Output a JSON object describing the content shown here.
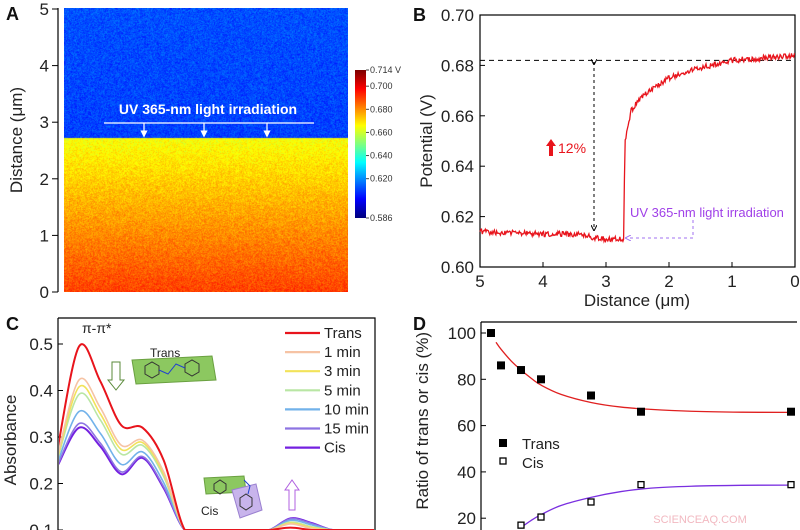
{
  "panels": {
    "a": "A",
    "b": "B",
    "c": "C",
    "d": "D"
  },
  "watermark": "SCIENCEAQ.COM",
  "chart_data": [
    {
      "panel": "A",
      "type": "heatmap",
      "ylabel": "Distance (μm)",
      "ylim": [
        0,
        5
      ],
      "yticks": [
        "0",
        "1",
        "2",
        "3",
        "4",
        "5"
      ],
      "annotation": "UV 365-nm light irradiation",
      "colormap": "jet",
      "colorbar": {
        "range": [
          0.586,
          0.714
        ],
        "ticks": [
          "0.714 V",
          "0.700",
          "0.680",
          "0.660",
          "0.640",
          "0.620",
          "0.586"
        ]
      },
      "regions": [
        {
          "y_range": [
            2.72,
            5
          ],
          "potential_V": [
            0.61,
            0.612
          ]
        },
        {
          "y_range": [
            0,
            2.72
          ],
          "potential_V": [
            0.69,
            0.665
          ]
        }
      ]
    },
    {
      "panel": "B",
      "type": "line",
      "xlabel": "Distance (μm)",
      "ylabel": "Potential (V)",
      "xlim": [
        5,
        0
      ],
      "ylim": [
        0.6,
        0.7
      ],
      "xticks": [
        "5",
        "4",
        "3",
        "2",
        "1",
        "0"
      ],
      "yticks": [
        "0.60",
        "0.62",
        "0.64",
        "0.66",
        "0.68",
        "0.70"
      ],
      "x": [
        5,
        4,
        3.5,
        3,
        2.75,
        2.72,
        2.7,
        2.6,
        2.5,
        2.25,
        2.0,
        1.5,
        1.0,
        0.5,
        0
      ],
      "y": [
        0.614,
        0.613,
        0.613,
        0.611,
        0.611,
        0.611,
        0.65,
        0.662,
        0.666,
        0.671,
        0.675,
        0.679,
        0.682,
        0.683,
        0.684
      ],
      "reference_line": 0.682,
      "annotations": {
        "increase": "12%",
        "irradiation": "UV 365-nm light irradiation"
      },
      "color": "#e8141c"
    },
    {
      "panel": "C",
      "type": "line",
      "ylabel": "Absorbance",
      "ylim_visible": [
        0.1,
        0.55
      ],
      "yticks": [
        "0.1",
        "0.2",
        "0.3",
        "0.4",
        "0.5"
      ],
      "annotations": {
        "peak": "π-π*",
        "trans": "Trans",
        "cis": "Cis"
      },
      "series": [
        {
          "name": "Trans",
          "color": "#e8141c",
          "values": [
            0.28,
            0.495,
            0.42,
            0.325,
            0.32,
            0.25,
            0.1,
            0,
            0,
            0.02,
            0.07,
            0.105,
            0.095,
            0.06,
            0.03,
            0.01
          ]
        },
        {
          "name": "1 min",
          "color": "#f6c3a4",
          "values": [
            0.264,
            0.423,
            0.363,
            0.282,
            0.293,
            0.225,
            0.088,
            0,
            0,
            0.028,
            0.082,
            0.113,
            0.103,
            0.068,
            0.034,
            0.01
          ]
        },
        {
          "name": "3 min",
          "color": "#f2e35a",
          "values": [
            0.26,
            0.408,
            0.35,
            0.273,
            0.288,
            0.22,
            0.085,
            0,
            0,
            0.03,
            0.085,
            0.115,
            0.105,
            0.07,
            0.035,
            0.01
          ]
        },
        {
          "name": "5 min",
          "color": "#b9e6a4",
          "values": [
            0.256,
            0.392,
            0.337,
            0.263,
            0.282,
            0.215,
            0.082,
            0,
            0,
            0.032,
            0.088,
            0.117,
            0.107,
            0.072,
            0.036,
            0.01
          ]
        },
        {
          "name": "10 min",
          "color": "#72b2ea",
          "values": [
            0.248,
            0.355,
            0.308,
            0.241,
            0.268,
            0.202,
            0.076,
            0,
            0,
            0.036,
            0.094,
            0.121,
            0.111,
            0.076,
            0.038,
            0.01
          ]
        },
        {
          "name": "15 min",
          "color": "#8d74e2",
          "values": [
            0.242,
            0.329,
            0.287,
            0.225,
            0.258,
            0.193,
            0.072,
            0,
            0,
            0.039,
            0.099,
            0.124,
            0.114,
            0.079,
            0.04,
            0.01
          ]
        },
        {
          "name": "Cis",
          "color": "#7420e0",
          "values": [
            0.24,
            0.32,
            0.28,
            0.22,
            0.255,
            0.19,
            0.07,
            0,
            0,
            0.04,
            0.1,
            0.125,
            0.115,
            0.08,
            0.04,
            0.01
          ]
        }
      ]
    },
    {
      "panel": "D",
      "type": "scatter",
      "ylabel": "Ratio of trans or cis (%)",
      "ylim_visible": [
        15,
        105
      ],
      "yticks": [
        "20",
        "40",
        "60",
        "80",
        "100"
      ],
      "x_minutes": [
        0,
        1,
        3,
        5,
        10,
        15,
        30
      ],
      "series": [
        {
          "name": "Trans",
          "marker": "filled-square",
          "values": [
            100,
            86,
            84,
            80,
            73,
            66,
            66
          ],
          "fit_color": "#e02020",
          "fit": [
            [
              0.5,
              96
            ],
            [
              1,
              93
            ],
            [
              2,
              88
            ],
            [
              3,
              84
            ],
            [
              4,
              80.5
            ],
            [
              5,
              77.5
            ],
            [
              7,
              73.5
            ],
            [
              10,
              70
            ],
            [
              13,
              68
            ],
            [
              16,
              67
            ],
            [
              20,
              66.2
            ],
            [
              25,
              65.8
            ],
            [
              30,
              65.7
            ]
          ]
        },
        {
          "name": "Cis",
          "marker": "open-square",
          "values": [
            0,
            14,
            17,
            20.5,
            27,
            34.5,
            34.5
          ],
          "fit_color": "#7a2fe0",
          "fit": [
            [
              3,
              16
            ],
            [
              4,
              19
            ],
            [
              5,
              21.5
            ],
            [
              7,
              25.5
            ],
            [
              10,
              29
            ],
            [
              13,
              31.5
            ],
            [
              16,
              33
            ],
            [
              20,
              33.8
            ],
            [
              25,
              34.2
            ],
            [
              30,
              34.3
            ]
          ]
        }
      ]
    }
  ]
}
